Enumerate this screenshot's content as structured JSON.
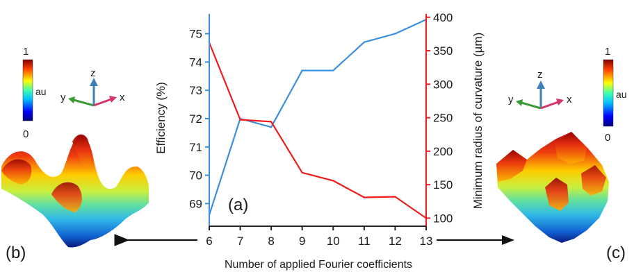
{
  "panel_labels": {
    "a": "(a)",
    "b": "(b)",
    "c": "(c)"
  },
  "colorbar": {
    "max_label": "1",
    "unit_label": "au",
    "min_label": "0"
  },
  "axes_triad": {
    "x": "x",
    "y": "y",
    "z": "z"
  },
  "colors": {
    "efficiency": "#3a8fe0",
    "radius": "#ee1c1c",
    "axis": "#222222",
    "triad_x": "#d6336c",
    "triad_y": "#3a9a3a",
    "triad_z": "#3d7fb6"
  },
  "chart_data": {
    "type": "line",
    "x": [
      6,
      7,
      8,
      9,
      10,
      11,
      12,
      13
    ],
    "xlabel": "Number of applied Fourier coefficients",
    "xlim": [
      6,
      13
    ],
    "series": [
      {
        "name": "Efficiency (%)",
        "axis": "left",
        "values": [
          68.6,
          72.0,
          71.7,
          73.7,
          73.7,
          74.7,
          75.0,
          75.5
        ]
      },
      {
        "name": "Minimum radius of curvature (µm)",
        "axis": "right",
        "values": [
          362,
          247,
          244,
          168,
          156,
          131,
          132,
          100
        ]
      }
    ],
    "ylabel_left": "Efficiency (%)",
    "ylabel_right": "Minimum radius of curvature (µm)",
    "ylim_left": [
      68.2,
      75.7
    ],
    "ylim_right": [
      88,
      405
    ],
    "yticks_left": [
      69,
      70,
      71,
      72,
      73,
      74,
      75
    ],
    "yticks_right": [
      100,
      150,
      200,
      250,
      300,
      350,
      400
    ],
    "grid": false,
    "legend": "none"
  }
}
